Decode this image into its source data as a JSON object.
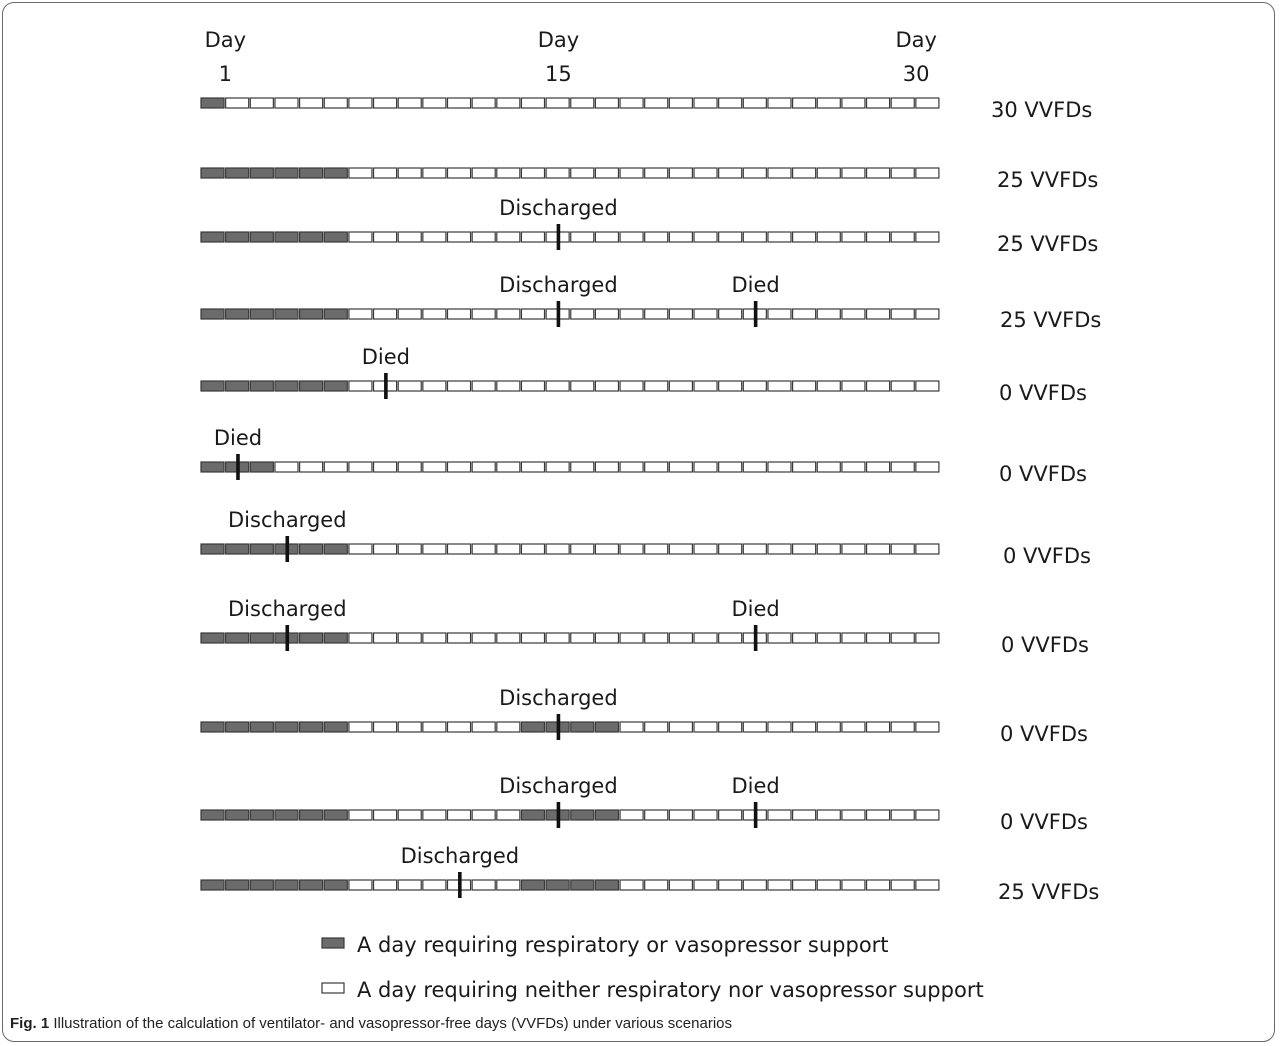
{
  "header": {
    "day_labels": [
      {
        "word": "Day",
        "num": "1",
        "day": 1
      },
      {
        "word": "Day",
        "num": "15",
        "day": 15
      },
      {
        "word": "Day",
        "num": "30",
        "day": 30
      }
    ]
  },
  "rows": [
    {
      "shaded": [
        1
      ],
      "marks": [],
      "result": "30 VVFDs"
    },
    {
      "shaded": [
        1,
        2,
        3,
        4,
        5,
        6
      ],
      "marks": [],
      "result": "25 VVFDs"
    },
    {
      "shaded": [
        1,
        2,
        3,
        4,
        5,
        6
      ],
      "marks": [
        {
          "label": "Discharged",
          "day": 15.5
        }
      ],
      "result": "25 VVFDs"
    },
    {
      "shaded": [
        1,
        2,
        3,
        4,
        5,
        6
      ],
      "marks": [
        {
          "label": "Discharged",
          "day": 15.5
        },
        {
          "label": "Died",
          "day": 23.5
        }
      ],
      "result": "25 VVFDs"
    },
    {
      "shaded": [
        1,
        2,
        3,
        4,
        5,
        6
      ],
      "marks": [
        {
          "label": "Died",
          "day": 8.5
        }
      ],
      "result": "0 VVFDs"
    },
    {
      "shaded": [
        1,
        2,
        3
      ],
      "marks": [
        {
          "label": "Died",
          "day": 2.5
        }
      ],
      "result": "0 VVFDs"
    },
    {
      "shaded": [
        1,
        2,
        3,
        4,
        5,
        6
      ],
      "marks": [
        {
          "label": "Discharged",
          "day": 4.5
        }
      ],
      "result": "0 VVFDs"
    },
    {
      "shaded": [
        1,
        2,
        3,
        4,
        5,
        6
      ],
      "marks": [
        {
          "label": "Discharged",
          "day": 4.5
        },
        {
          "label": "Died",
          "day": 23.5
        }
      ],
      "result": "0 VVFDs"
    },
    {
      "shaded": [
        1,
        2,
        3,
        4,
        5,
        6,
        14,
        15,
        16,
        17
      ],
      "marks": [
        {
          "label": "Discharged",
          "day": 15.5
        }
      ],
      "result": "0 VVFDs"
    },
    {
      "shaded": [
        1,
        2,
        3,
        4,
        5,
        6,
        14,
        15,
        16,
        17
      ],
      "marks": [
        {
          "label": "Discharged",
          "day": 15.5
        },
        {
          "label": "Died",
          "day": 23.5
        }
      ],
      "result": "0 VVFDs"
    },
    {
      "shaded": [
        1,
        2,
        3,
        4,
        5,
        6,
        14,
        15,
        16,
        17
      ],
      "marks": [
        {
          "label": "Discharged",
          "day": 11.5
        }
      ],
      "result": "25 VVFDs"
    }
  ],
  "legend": {
    "shaded_label": "A day requiring respiratory or vasopressor support",
    "unshaded_label": "A day requiring neither respiratory nor vasopressor support"
  },
  "caption": {
    "prefix": "Fig. 1",
    "text": "Illustration of the calculation of ventilator- and vasopressor-free days (VVFDs) under various scenarios"
  },
  "colors": {
    "shaded_fill": "#6b6b6b",
    "empty_fill": "#ffffff",
    "outline": "#3a3a3a",
    "marker": "#111111"
  }
}
